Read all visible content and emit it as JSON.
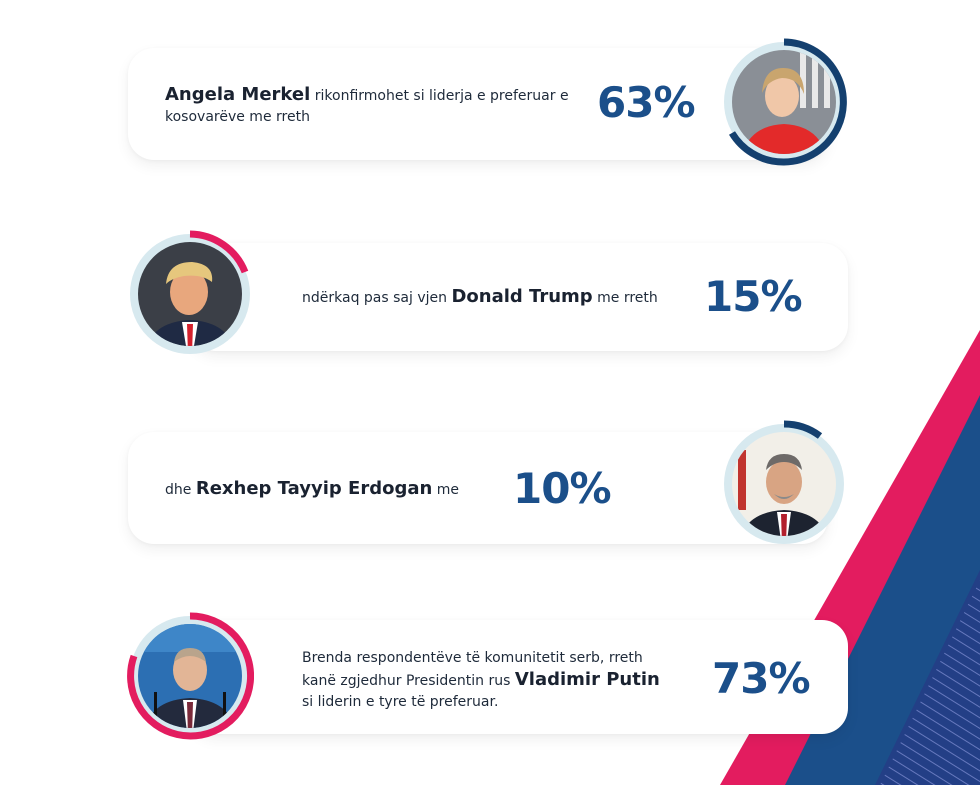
{
  "colors": {
    "accent_blue": "#1b4f8a",
    "ring_blue": "#14406f",
    "accent_pink": "#e31c5f",
    "ring_track": "#d7e9ef",
    "text_dark": "#1e2a3a"
  },
  "items": [
    {
      "name": "Angela Merkel",
      "before": "",
      "after": " rikonfirmohet si liderja e preferuar e kosovarëve me rreth",
      "percent": "63%",
      "value": 63,
      "ring_color": "#14406f",
      "avatar_label": "Angela Merkel portrait"
    },
    {
      "name": "Donald Trump",
      "before": "ndërkaq pas saj vjen ",
      "after": " me rreth",
      "percent": "15%",
      "value": 15,
      "ring_color": "#e31c5f",
      "avatar_label": "Donald Trump portrait"
    },
    {
      "name": "Rexhep Tayyip Erdogan",
      "before": "dhe ",
      "after": " me",
      "percent": "10%",
      "value": 10,
      "ring_color": "#14406f",
      "avatar_label": "Rexhep Tayyip Erdogan portrait"
    },
    {
      "name": "Vladimir Putin",
      "before": "Brenda respondentëve të komunitetit serb, rreth kanë zgjedhur Presidentin rus ",
      "after": " si liderin e tyre të preferuar.",
      "percent": "73%",
      "value": 73,
      "ring_color": "#e31c5f",
      "avatar_label": "Vladimir Putin portrait"
    }
  ]
}
